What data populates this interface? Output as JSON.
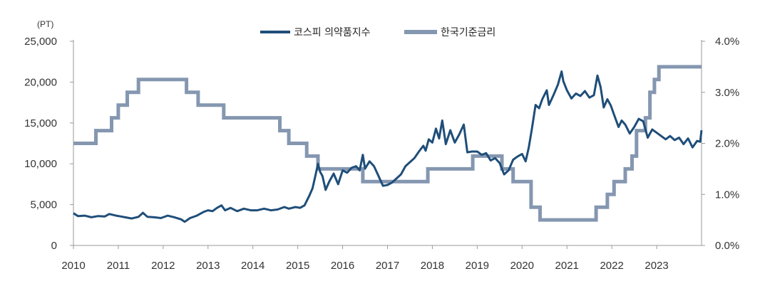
{
  "chart_data": {
    "type": "line",
    "unit_left": "(PT)",
    "x_ticks": [
      "2010",
      "2011",
      "2012",
      "2013",
      "2014",
      "2015",
      "2016",
      "2017",
      "2018",
      "2019",
      "2020",
      "2021",
      "2022",
      "2023"
    ],
    "y_left_ticks": [
      "0",
      "5,000",
      "10,000",
      "15,000",
      "20,000",
      "25,000"
    ],
    "y_right_ticks": [
      "0.0%",
      "1.0%",
      "2.0%",
      "3.0%",
      "4.0%"
    ],
    "y_left_range": [
      0,
      25000
    ],
    "y_right_range": [
      0,
      4
    ],
    "x_range": [
      2010.0,
      2024.0
    ],
    "legend_position": "top-center",
    "grid": false,
    "series": [
      {
        "name": "코스피 의약품지수",
        "axis": "left",
        "color": "#1f4e79",
        "points": [
          [
            2010.0,
            3950
          ],
          [
            2010.1,
            3600
          ],
          [
            2010.25,
            3650
          ],
          [
            2010.4,
            3450
          ],
          [
            2010.55,
            3600
          ],
          [
            2010.7,
            3550
          ],
          [
            2010.8,
            3850
          ],
          [
            2010.95,
            3650
          ],
          [
            2011.05,
            3550
          ],
          [
            2011.15,
            3450
          ],
          [
            2011.3,
            3300
          ],
          [
            2011.45,
            3500
          ],
          [
            2011.55,
            4000
          ],
          [
            2011.65,
            3500
          ],
          [
            2011.8,
            3450
          ],
          [
            2011.95,
            3350
          ],
          [
            2012.1,
            3650
          ],
          [
            2012.25,
            3450
          ],
          [
            2012.4,
            3200
          ],
          [
            2012.48,
            2900
          ],
          [
            2012.6,
            3350
          ],
          [
            2012.75,
            3650
          ],
          [
            2012.9,
            4100
          ],
          [
            2013.0,
            4300
          ],
          [
            2013.1,
            4200
          ],
          [
            2013.2,
            4600
          ],
          [
            2013.3,
            4900
          ],
          [
            2013.38,
            4300
          ],
          [
            2013.5,
            4600
          ],
          [
            2013.65,
            4200
          ],
          [
            2013.8,
            4500
          ],
          [
            2013.95,
            4300
          ],
          [
            2014.1,
            4300
          ],
          [
            2014.25,
            4500
          ],
          [
            2014.4,
            4300
          ],
          [
            2014.55,
            4400
          ],
          [
            2014.7,
            4700
          ],
          [
            2014.8,
            4500
          ],
          [
            2014.95,
            4700
          ],
          [
            2015.05,
            4600
          ],
          [
            2015.15,
            4900
          ],
          [
            2015.25,
            6000
          ],
          [
            2015.33,
            7000
          ],
          [
            2015.4,
            8700
          ],
          [
            2015.45,
            10000
          ],
          [
            2015.5,
            9000
          ],
          [
            2015.55,
            8500
          ],
          [
            2015.62,
            6800
          ],
          [
            2015.7,
            7800
          ],
          [
            2015.8,
            8800
          ],
          [
            2015.9,
            7500
          ],
          [
            2016.0,
            9200
          ],
          [
            2016.1,
            8900
          ],
          [
            2016.2,
            9500
          ],
          [
            2016.3,
            9700
          ],
          [
            2016.38,
            9200
          ],
          [
            2016.45,
            11100
          ],
          [
            2016.5,
            9400
          ],
          [
            2016.6,
            10300
          ],
          [
            2016.7,
            9700
          ],
          [
            2016.8,
            8500
          ],
          [
            2016.9,
            7300
          ],
          [
            2017.0,
            7400
          ],
          [
            2017.1,
            7700
          ],
          [
            2017.2,
            8200
          ],
          [
            2017.3,
            8700
          ],
          [
            2017.4,
            9700
          ],
          [
            2017.5,
            10200
          ],
          [
            2017.6,
            10700
          ],
          [
            2017.7,
            11500
          ],
          [
            2017.8,
            12200
          ],
          [
            2017.85,
            11600
          ],
          [
            2017.92,
            13000
          ],
          [
            2018.0,
            12600
          ],
          [
            2018.08,
            14300
          ],
          [
            2018.15,
            13100
          ],
          [
            2018.22,
            15300
          ],
          [
            2018.3,
            12400
          ],
          [
            2018.4,
            14100
          ],
          [
            2018.5,
            12600
          ],
          [
            2018.6,
            13600
          ],
          [
            2018.7,
            14800
          ],
          [
            2018.78,
            11400
          ],
          [
            2018.88,
            11500
          ],
          [
            2019.0,
            11500
          ],
          [
            2019.1,
            11100
          ],
          [
            2019.2,
            11300
          ],
          [
            2019.3,
            10400
          ],
          [
            2019.4,
            10700
          ],
          [
            2019.5,
            10100
          ],
          [
            2019.6,
            8700
          ],
          [
            2019.7,
            9200
          ],
          [
            2019.8,
            10500
          ],
          [
            2019.9,
            10900
          ],
          [
            2020.0,
            11200
          ],
          [
            2020.08,
            10300
          ],
          [
            2020.15,
            12000
          ],
          [
            2020.22,
            14300
          ],
          [
            2020.3,
            17200
          ],
          [
            2020.38,
            16800
          ],
          [
            2020.45,
            17900
          ],
          [
            2020.55,
            19000
          ],
          [
            2020.6,
            17200
          ],
          [
            2020.7,
            18400
          ],
          [
            2020.8,
            19700
          ],
          [
            2020.88,
            21300
          ],
          [
            2020.92,
            20100
          ],
          [
            2021.0,
            19000
          ],
          [
            2021.1,
            18000
          ],
          [
            2021.2,
            18600
          ],
          [
            2021.3,
            18300
          ],
          [
            2021.4,
            18900
          ],
          [
            2021.5,
            18100
          ],
          [
            2021.6,
            18400
          ],
          [
            2021.68,
            20800
          ],
          [
            2021.75,
            19400
          ],
          [
            2021.82,
            16900
          ],
          [
            2021.9,
            17900
          ],
          [
            2021.98,
            17100
          ],
          [
            2022.05,
            16000
          ],
          [
            2022.15,
            14500
          ],
          [
            2022.22,
            15300
          ],
          [
            2022.3,
            14800
          ],
          [
            2022.4,
            13700
          ],
          [
            2022.5,
            14500
          ],
          [
            2022.6,
            15500
          ],
          [
            2022.7,
            15200
          ],
          [
            2022.8,
            13200
          ],
          [
            2022.9,
            14200
          ],
          [
            2023.0,
            13800
          ],
          [
            2023.1,
            13400
          ],
          [
            2023.2,
            13000
          ],
          [
            2023.3,
            13400
          ],
          [
            2023.4,
            12900
          ],
          [
            2023.5,
            13200
          ],
          [
            2023.6,
            12400
          ],
          [
            2023.7,
            13100
          ],
          [
            2023.8,
            12000
          ],
          [
            2023.9,
            12800
          ],
          [
            2023.97,
            12700
          ],
          [
            2024.0,
            14100
          ]
        ]
      },
      {
        "name": "한국기준금리",
        "axis": "right",
        "color": "#8597b0",
        "points": [
          [
            2010.0,
            2.0
          ],
          [
            2010.5,
            2.0
          ],
          [
            2010.5,
            2.25
          ],
          [
            2010.85,
            2.25
          ],
          [
            2010.85,
            2.5
          ],
          [
            2011.0,
            2.5
          ],
          [
            2011.0,
            2.75
          ],
          [
            2011.2,
            2.75
          ],
          [
            2011.2,
            3.0
          ],
          [
            2011.45,
            3.0
          ],
          [
            2011.45,
            3.25
          ],
          [
            2012.52,
            3.25
          ],
          [
            2012.52,
            3.0
          ],
          [
            2012.78,
            3.0
          ],
          [
            2012.78,
            2.75
          ],
          [
            2013.35,
            2.75
          ],
          [
            2013.35,
            2.5
          ],
          [
            2014.6,
            2.5
          ],
          [
            2014.6,
            2.25
          ],
          [
            2014.8,
            2.25
          ],
          [
            2014.8,
            2.0
          ],
          [
            2015.2,
            2.0
          ],
          [
            2015.2,
            1.75
          ],
          [
            2015.45,
            1.75
          ],
          [
            2015.45,
            1.5
          ],
          [
            2016.45,
            1.5
          ],
          [
            2016.45,
            1.25
          ],
          [
            2017.9,
            1.25
          ],
          [
            2017.9,
            1.5
          ],
          [
            2018.9,
            1.5
          ],
          [
            2018.9,
            1.75
          ],
          [
            2019.55,
            1.75
          ],
          [
            2019.55,
            1.5
          ],
          [
            2019.8,
            1.5
          ],
          [
            2019.8,
            1.25
          ],
          [
            2020.2,
            1.25
          ],
          [
            2020.2,
            0.75
          ],
          [
            2020.4,
            0.75
          ],
          [
            2020.4,
            0.5
          ],
          [
            2021.65,
            0.5
          ],
          [
            2021.65,
            0.75
          ],
          [
            2021.9,
            0.75
          ],
          [
            2021.9,
            1.0
          ],
          [
            2022.05,
            1.0
          ],
          [
            2022.05,
            1.25
          ],
          [
            2022.3,
            1.25
          ],
          [
            2022.3,
            1.5
          ],
          [
            2022.45,
            1.5
          ],
          [
            2022.45,
            1.75
          ],
          [
            2022.55,
            1.75
          ],
          [
            2022.55,
            2.25
          ],
          [
            2022.75,
            2.25
          ],
          [
            2022.75,
            2.5
          ],
          [
            2022.85,
            2.5
          ],
          [
            2022.85,
            3.0
          ],
          [
            2022.95,
            3.0
          ],
          [
            2022.95,
            3.25
          ],
          [
            2023.05,
            3.25
          ],
          [
            2023.05,
            3.5
          ],
          [
            2024.0,
            3.5
          ]
        ]
      }
    ]
  }
}
